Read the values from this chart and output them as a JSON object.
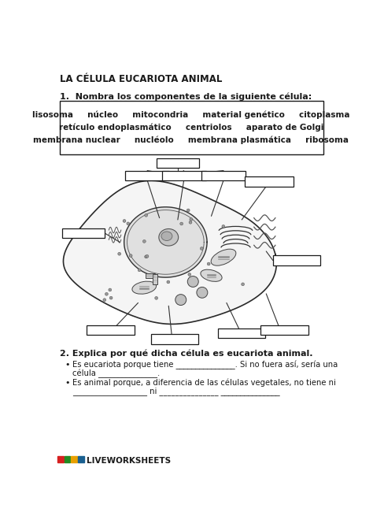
{
  "title": "LA CÉLULA EUCARIOTA ANIMAL",
  "q1_label": "1.  Nombra los componentes de la siguiente célula:",
  "word_bank_row1": "lisosoma     núcleo     mitocondria     material genético     citoplasma",
  "word_bank_row2": "retículo endoplasmático     centriolos     aparato de Golgi",
  "word_bank_row3": "membrana nuclear     nucléolo     membrana plasmática     ribosoma",
  "q2_label": "2. Explica por qué dicha célula es eucariota animal.",
  "bullet1_text": "Es eucariota porque tiene _______________. Si no fuera así, sería una\n      célula _______________.",
  "bullet2_text": "Es animal porque, a diferencia de las células vegetales, no tiene ni\n      ___________________ ni _______________ _______________",
  "liveworksheets": "LIVEWORKSHEETS",
  "bg_color": "#ffffff",
  "text_color": "#1a1a1a",
  "box_color": "#1a1a1a",
  "font_size_title": 8.5,
  "font_size_q": 8,
  "font_size_body": 7.5,
  "font_size_words": 7.5,
  "lw_colors": [
    "#d62020",
    "#228b22",
    "#e8a000",
    "#1a6090"
  ]
}
